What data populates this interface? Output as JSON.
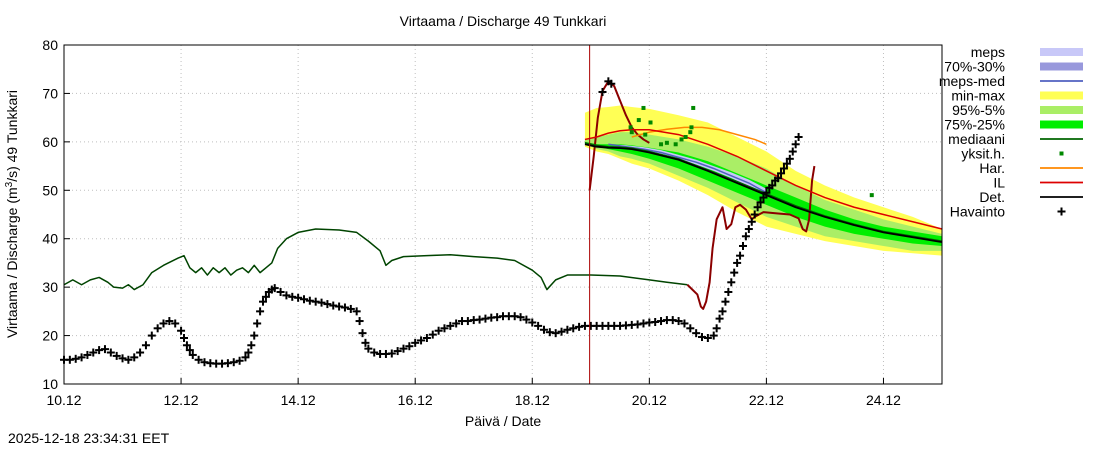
{
  "chart_data": {
    "type": "line",
    "title": "Virtaama / Discharge  49 Tunkkari",
    "xlabel": "Päivä / Date",
    "ylabel_main": "Virtaama / Discharge (m",
    "ylabel_sup": "3",
    "ylabel_rest": "/s)  49 Tunkkari",
    "x_unit": "days since 10.12 00:00",
    "xlim": [
      0,
      15
    ],
    "ylim": [
      10,
      80
    ],
    "grid": true,
    "yticks": [
      10,
      20,
      30,
      40,
      50,
      60,
      70,
      80
    ],
    "xticks": [
      {
        "x": 0,
        "label": "10.12"
      },
      {
        "x": 2,
        "label": "12.12"
      },
      {
        "x": 4,
        "label": "14.12"
      },
      {
        "x": 6,
        "label": "16.12"
      },
      {
        "x": 8,
        "label": "18.12"
      },
      {
        "x": 10,
        "label": "20.12"
      },
      {
        "x": 12,
        "label": "22.12"
      },
      {
        "x": 14,
        "label": "24.12"
      }
    ],
    "forecast_start_x": 8.98,
    "legend": [
      {
        "key": "meps",
        "label": "meps",
        "swatch": "band",
        "color": "#c8c8f8"
      },
      {
        "key": "meps70",
        "label": "70%-30%",
        "swatch": "band",
        "color": "#9898dc"
      },
      {
        "key": "meps_med",
        "label": "meps-med",
        "swatch": "line",
        "color": "#5060c0"
      },
      {
        "key": "minmax",
        "label": "min-max",
        "swatch": "band",
        "color": "#ffff55"
      },
      {
        "key": "p95",
        "label": "95%-5%",
        "swatch": "band",
        "color": "#aaee66"
      },
      {
        "key": "p75",
        "label": "75%-25%",
        "swatch": "band",
        "color": "#00ee00"
      },
      {
        "key": "mediaani",
        "label": "mediaani",
        "swatch": "line",
        "color": "#006400"
      },
      {
        "key": "yksit",
        "label": "yksit.h.",
        "swatch": "dot",
        "color": "#008800"
      },
      {
        "key": "har",
        "label": "Har.",
        "swatch": "line",
        "color": "#ff8800"
      },
      {
        "key": "il",
        "label": "IL",
        "swatch": "line",
        "color": "#dd0000"
      },
      {
        "key": "det",
        "label": "Det.",
        "swatch": "line",
        "color": "#000000"
      },
      {
        "key": "havainto",
        "label": "Havainto",
        "swatch": "plus",
        "color": "#000000"
      }
    ],
    "colors": {
      "minmax": "#ffff55",
      "p95": "#aaee66",
      "p75": "#00ee00",
      "median": "#006400",
      "meps": "#c8c8f8",
      "meps70": "#9898dc",
      "meps_med": "#5060c0",
      "har": "#ff8800",
      "il": "#dd0000",
      "det": "#000000",
      "sim_hist": "#004400",
      "sim_recent": "#8b0000",
      "obs": "#000000",
      "forecast_line": "#aa0000",
      "dots": "#008800"
    },
    "series": {
      "simulation_history": [
        [
          0,
          30.5
        ],
        [
          0.15,
          31.5
        ],
        [
          0.3,
          30.5
        ],
        [
          0.45,
          31.5
        ],
        [
          0.6,
          32
        ],
        [
          0.75,
          31
        ],
        [
          0.85,
          30
        ],
        [
          1.0,
          29.8
        ],
        [
          1.1,
          30.5
        ],
        [
          1.2,
          29.5
        ],
        [
          1.35,
          30.5
        ],
        [
          1.5,
          33
        ],
        [
          1.7,
          34.5
        ],
        [
          1.95,
          36
        ],
        [
          2.05,
          36.5
        ],
        [
          2.15,
          34
        ],
        [
          2.25,
          33
        ],
        [
          2.35,
          34
        ],
        [
          2.45,
          32.5
        ],
        [
          2.55,
          34
        ],
        [
          2.65,
          33
        ],
        [
          2.75,
          34
        ],
        [
          2.85,
          32.5
        ],
        [
          2.95,
          33.5
        ],
        [
          3.05,
          34
        ],
        [
          3.15,
          33
        ],
        [
          3.25,
          34.5
        ],
        [
          3.35,
          33
        ],
        [
          3.45,
          34
        ],
        [
          3.55,
          35
        ],
        [
          3.65,
          38
        ],
        [
          3.8,
          40
        ],
        [
          4.0,
          41.3
        ],
        [
          4.3,
          42
        ],
        [
          4.7,
          41.8
        ],
        [
          5.0,
          41.3
        ],
        [
          5.2,
          39.5
        ],
        [
          5.4,
          37.5
        ],
        [
          5.5,
          34.5
        ],
        [
          5.6,
          35.5
        ],
        [
          5.8,
          36.3
        ],
        [
          6.2,
          36.5
        ],
        [
          6.6,
          36.7
        ],
        [
          7.0,
          36.3
        ],
        [
          7.4,
          36
        ],
        [
          7.7,
          35.5
        ],
        [
          8.0,
          33.5
        ],
        [
          8.15,
          32
        ],
        [
          8.25,
          29.5
        ],
        [
          8.4,
          31.5
        ],
        [
          8.6,
          32.5
        ],
        [
          9.0,
          32.5
        ],
        [
          9.5,
          32.3
        ],
        [
          10.0,
          31.5
        ],
        [
          10.3,
          31
        ],
        [
          10.65,
          30.5
        ]
      ],
      "simulation_recent": [
        [
          10.65,
          30.5
        ],
        [
          10.82,
          28.5
        ],
        [
          10.88,
          26
        ],
        [
          10.92,
          25.5
        ],
        [
          10.97,
          27
        ],
        [
          11.03,
          31
        ],
        [
          11.08,
          38
        ],
        [
          11.15,
          44
        ],
        [
          11.25,
          46.5
        ],
        [
          11.32,
          42
        ],
        [
          11.4,
          43
        ],
        [
          11.47,
          46.5
        ],
        [
          11.55,
          47
        ],
        [
          11.65,
          46
        ],
        [
          11.75,
          44
        ],
        [
          11.8,
          44.5
        ],
        [
          11.95,
          45.5
        ],
        [
          12.2,
          45.2
        ],
        [
          12.4,
          45
        ],
        [
          12.55,
          44.2
        ],
        [
          12.62,
          42
        ],
        [
          12.68,
          41.5
        ],
        [
          12.73,
          44
        ],
        [
          12.78,
          52
        ],
        [
          12.82,
          55
        ]
      ],
      "observations_hist": [
        [
          0.0,
          15
        ],
        [
          0.1,
          15
        ],
        [
          0.2,
          15.2
        ],
        [
          0.3,
          15.5
        ],
        [
          0.4,
          16
        ],
        [
          0.5,
          16.5
        ],
        [
          0.6,
          17
        ],
        [
          0.7,
          17.2
        ],
        [
          0.8,
          16.5
        ],
        [
          0.9,
          15.8
        ],
        [
          1.0,
          15.3
        ],
        [
          1.1,
          15
        ],
        [
          1.2,
          15.5
        ],
        [
          1.3,
          16.5
        ],
        [
          1.4,
          18
        ],
        [
          1.5,
          20
        ],
        [
          1.6,
          21.5
        ],
        [
          1.7,
          22.5
        ],
        [
          1.8,
          23
        ],
        [
          1.9,
          22.5
        ],
        [
          2.0,
          21
        ],
        [
          2.05,
          19.5
        ],
        [
          2.1,
          18
        ],
        [
          2.15,
          17
        ],
        [
          2.2,
          16
        ],
        [
          2.3,
          15
        ],
        [
          2.4,
          14.5
        ],
        [
          2.5,
          14.3
        ],
        [
          2.6,
          14.2
        ],
        [
          2.7,
          14.2
        ],
        [
          2.8,
          14.3
        ],
        [
          2.9,
          14.5
        ],
        [
          3.0,
          14.8
        ],
        [
          3.1,
          15.5
        ],
        [
          3.15,
          16.5
        ],
        [
          3.2,
          18
        ],
        [
          3.25,
          20
        ],
        [
          3.3,
          22.5
        ],
        [
          3.35,
          25
        ],
        [
          3.4,
          27
        ],
        [
          3.45,
          28
        ],
        [
          3.5,
          29
        ],
        [
          3.55,
          29.5
        ],
        [
          3.6,
          29.8
        ],
        [
          3.7,
          29
        ],
        [
          3.8,
          28.3
        ],
        [
          3.9,
          28
        ],
        [
          4.0,
          27.8
        ],
        [
          4.1,
          27.5
        ],
        [
          4.2,
          27.2
        ],
        [
          4.3,
          27
        ],
        [
          4.4,
          26.8
        ],
        [
          4.5,
          26.5
        ],
        [
          4.6,
          26.2
        ],
        [
          4.7,
          26
        ],
        [
          4.8,
          25.8
        ],
        [
          4.9,
          25.5
        ],
        [
          5.0,
          25
        ],
        [
          5.05,
          23
        ],
        [
          5.1,
          20.5
        ],
        [
          5.15,
          18.5
        ],
        [
          5.2,
          17.3
        ],
        [
          5.3,
          16.5
        ],
        [
          5.4,
          16.2
        ],
        [
          5.5,
          16.2
        ],
        [
          5.6,
          16.3
        ],
        [
          5.7,
          16.8
        ],
        [
          5.8,
          17.3
        ],
        [
          5.9,
          17.8
        ],
        [
          6.0,
          18.5
        ],
        [
          6.1,
          19
        ],
        [
          6.2,
          19.5
        ],
        [
          6.3,
          20.2
        ],
        [
          6.4,
          21
        ],
        [
          6.5,
          21.5
        ],
        [
          6.6,
          22
        ],
        [
          6.7,
          22.5
        ],
        [
          6.8,
          23
        ],
        [
          6.9,
          23
        ],
        [
          7.0,
          23.2
        ],
        [
          7.1,
          23.3
        ],
        [
          7.2,
          23.5
        ],
        [
          7.3,
          23.7
        ],
        [
          7.4,
          23.8
        ],
        [
          7.5,
          24
        ],
        [
          7.6,
          24
        ],
        [
          7.7,
          24
        ],
        [
          7.8,
          23.8
        ],
        [
          7.9,
          23.3
        ],
        [
          8.0,
          22.7
        ],
        [
          8.1,
          22
        ],
        [
          8.2,
          21.2
        ],
        [
          8.3,
          20.7
        ],
        [
          8.4,
          20.5
        ],
        [
          8.5,
          20.8
        ],
        [
          8.6,
          21.2
        ],
        [
          8.7,
          21.5
        ],
        [
          8.8,
          21.8
        ],
        [
          8.9,
          22
        ],
        [
          9.0,
          22
        ],
        [
          9.1,
          22
        ],
        [
          9.2,
          22
        ],
        [
          9.3,
          22
        ],
        [
          9.4,
          22
        ],
        [
          9.5,
          22
        ],
        [
          9.6,
          22.1
        ],
        [
          9.7,
          22.2
        ],
        [
          9.8,
          22.3
        ],
        [
          9.9,
          22.5
        ],
        [
          10.0,
          22.7
        ],
        [
          10.1,
          22.8
        ],
        [
          10.2,
          23
        ],
        [
          10.3,
          23.2
        ],
        [
          10.4,
          23.2
        ],
        [
          10.5,
          23
        ],
        [
          10.6,
          22.5
        ],
        [
          10.7,
          21.5
        ],
        [
          10.8,
          20.5
        ],
        [
          10.9,
          19.7
        ],
        [
          11.0,
          19.5
        ],
        [
          11.1,
          20
        ],
        [
          11.15,
          21.5
        ],
        [
          11.2,
          23.5
        ],
        [
          11.25,
          25
        ],
        [
          11.3,
          27
        ],
        [
          11.35,
          29
        ],
        [
          11.4,
          31
        ],
        [
          11.45,
          33
        ],
        [
          11.5,
          35
        ],
        [
          11.55,
          36.5
        ],
        [
          11.6,
          38.5
        ],
        [
          11.65,
          40.5
        ],
        [
          11.7,
          42
        ],
        [
          11.75,
          43.5
        ],
        [
          11.8,
          45
        ],
        [
          11.85,
          46.5
        ],
        [
          11.9,
          47.5
        ],
        [
          11.95,
          48.5
        ],
        [
          12.0,
          49.5
        ],
        [
          12.05,
          50.5
        ],
        [
          12.1,
          51
        ],
        [
          12.15,
          52
        ],
        [
          12.2,
          52.5
        ],
        [
          12.25,
          53.5
        ],
        [
          12.3,
          54.5
        ],
        [
          12.35,
          55.5
        ],
        [
          12.4,
          56.5
        ],
        [
          12.45,
          58
        ],
        [
          12.5,
          59.5
        ],
        [
          12.55,
          61
        ]
      ],
      "forecast_x": [
        8.9,
        9.1,
        9.3,
        9.5,
        9.7,
        10.0,
        10.5,
        11.0,
        11.5,
        12.0,
        12.5,
        13.0,
        13.5,
        14.0,
        14.5,
        15.0
      ],
      "minmax_low": [
        59,
        58,
        57.5,
        56.5,
        55.5,
        54.5,
        52,
        49,
        45.5,
        42.5,
        41,
        39.5,
        38.5,
        37.5,
        37,
        36.5
      ],
      "minmax_high": [
        66,
        67,
        67.2,
        67.5,
        67.2,
        66.8,
        65.5,
        64,
        61,
        58,
        54,
        51,
        48.5,
        46.5,
        44.5,
        42
      ],
      "p95_low": [
        59.5,
        58.5,
        58,
        57,
        56.5,
        55.5,
        53,
        50.5,
        47.5,
        44.5,
        42.5,
        40.5,
        39.5,
        38.5,
        37.5,
        37.5
      ],
      "p95_high": [
        60.5,
        61,
        61.5,
        62,
        62,
        61.5,
        60.5,
        59,
        57,
        54.5,
        51,
        48,
        46,
        44,
        42.5,
        41
      ],
      "p75_low": [
        59.5,
        59,
        58.5,
        58,
        57.5,
        56.5,
        54.5,
        52,
        49.5,
        47,
        44.5,
        42.5,
        41,
        40,
        39,
        38.5
      ],
      "p75_high": [
        60,
        59.5,
        59.5,
        59.5,
        59.3,
        58.8,
        57.8,
        56,
        53.5,
        51,
        48.5,
        46,
        44,
        42.5,
        41.5,
        40.5
      ],
      "median": [
        59.8,
        59.3,
        59,
        58.9,
        58.7,
        58,
        56.5,
        54.2,
        51.8,
        49.3,
        46.8,
        44.7,
        43,
        41.5,
        40.5,
        39.5
      ],
      "det": [
        59.5,
        59,
        58.8,
        58.7,
        58.5,
        57.8,
        56.3,
        54,
        51.5,
        49,
        46.5,
        44.5,
        42.8,
        41.3,
        40.3,
        39.3
      ],
      "il": [
        60.5,
        61,
        61.8,
        62.3,
        62.5,
        62.5,
        61.5,
        59.5,
        57,
        54,
        51,
        48.5,
        46.5,
        45,
        43.5,
        42
      ],
      "har_x": [
        9.7,
        10.0,
        10.3,
        10.6,
        10.9,
        11.2,
        11.5,
        11.8,
        12.0
      ],
      "har": [
        61,
        62,
        62.6,
        63,
        63,
        62.5,
        61.5,
        60.5,
        59.5
      ],
      "meps_med_x": [
        9.3,
        9.6,
        9.9,
        10.2,
        10.5,
        10.8,
        11.1,
        11.4,
        11.7,
        12.0
      ],
      "meps_med": [
        59.5,
        59,
        58.5,
        57.8,
        56.8,
        55.8,
        54.5,
        53,
        51.5,
        49.5
      ],
      "meps_low": [
        59.5,
        59,
        58.3,
        57.5,
        56.5,
        55.3,
        54,
        52.5,
        50.8,
        49
      ],
      "meps_high": [
        59.5,
        59.3,
        58.9,
        58.3,
        57.3,
        56.3,
        55,
        53.7,
        52.2,
        50.3
      ],
      "peak_x": [
        8.98,
        9.05,
        9.12,
        9.2,
        9.3,
        9.4,
        9.5,
        9.6,
        9.7,
        9.8,
        9.9,
        10.0
      ],
      "peak_y": [
        50,
        57,
        65,
        70.5,
        72.5,
        71.5,
        68.5,
        65.5,
        63,
        61.5,
        60.5,
        59.8
      ],
      "peak_obs": [
        [
          9.2,
          70.3
        ],
        [
          9.3,
          72.5
        ],
        [
          9.35,
          72.0
        ]
      ],
      "dots": [
        [
          9.68,
          63
        ],
        [
          9.7,
          62
        ],
        [
          9.82,
          64.5
        ],
        [
          9.9,
          67
        ],
        [
          9.93,
          61.5
        ],
        [
          10.02,
          64
        ],
        [
          10.2,
          59.5
        ],
        [
          10.3,
          59.8
        ],
        [
          10.45,
          59.5
        ],
        [
          10.55,
          60.5
        ],
        [
          10.62,
          61
        ],
        [
          10.7,
          62
        ],
        [
          10.72,
          63
        ],
        [
          10.75,
          67
        ],
        [
          13.8,
          49
        ]
      ]
    }
  },
  "timestamp": "2025-12-18 23:34:31 EET"
}
